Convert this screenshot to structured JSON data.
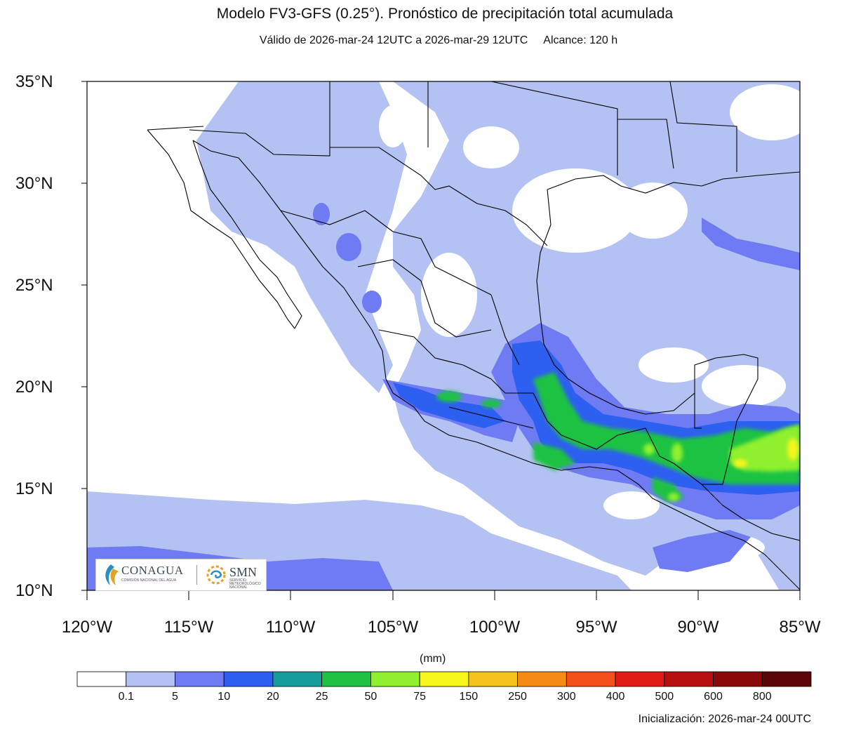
{
  "title": "Modelo FV3-GFS (0.25°). Pronóstico de precipitación total acumulada",
  "subtitle": {
    "valid": "Válido de 2026-mar-24 12UTC a 2026-mar-29 12UTC",
    "range": "Alcance: 120 h"
  },
  "lat_labels": [
    "35°N",
    "30°N",
    "25°N",
    "20°N",
    "15°N",
    "10°N"
  ],
  "lon_labels": [
    "120°W",
    "115°W",
    "110°W",
    "105°W",
    "100°W",
    "95°W",
    "90°W",
    "85°W"
  ],
  "colorbar": {
    "unit": "(mm)",
    "levels": [
      "0.1",
      "5",
      "10",
      "20",
      "25",
      "50",
      "75",
      "150",
      "250",
      "300",
      "400",
      "500",
      "600",
      "800"
    ],
    "colors": [
      "#ffffff",
      "#b3c2f2",
      "#6e7bf2",
      "#2d5ff0",
      "#169c9a",
      "#1fc243",
      "#8ef02e",
      "#f5f51b",
      "#f5c21b",
      "#f58b14",
      "#f2501a",
      "#e01a14",
      "#b80f0f",
      "#8a0a0a",
      "#5c0707"
    ]
  },
  "initialization": "Inicialización: 2026-mar-24 00UTC",
  "logos": {
    "conagua": "CONAGUA",
    "conagua_sub": "COMISIÓN NACIONAL DEL AGUA",
    "smn": "SMN",
    "smn_sub": "SERVICIO METEOROLÓGICO NACIONAL"
  },
  "map": {
    "lon_range": [
      -120,
      -85
    ],
    "lat_range": [
      10,
      35
    ],
    "projection": "lat-lon"
  }
}
